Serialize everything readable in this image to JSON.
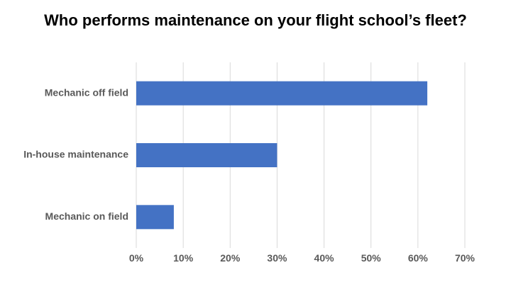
{
  "chart_data": {
    "type": "bar",
    "orientation": "horizontal",
    "title": "Who performs maintenance on your flight school’s fleet?",
    "categories": [
      "Mechanic off field",
      "In-house maintenance",
      "Mechanic on field"
    ],
    "values": [
      62,
      30,
      8
    ],
    "value_format": "percent",
    "xlim": [
      0,
      70
    ],
    "xticks": [
      0,
      10,
      20,
      30,
      40,
      50,
      60,
      70
    ],
    "xtick_labels": [
      "0%",
      "10%",
      "20%",
      "30%",
      "40%",
      "50%",
      "60%",
      "70%"
    ],
    "grid": "vertical",
    "legend": "none",
    "bar_color": "#4472C4",
    "grid_color": "#D9D9D9",
    "label_color": "#595959"
  }
}
